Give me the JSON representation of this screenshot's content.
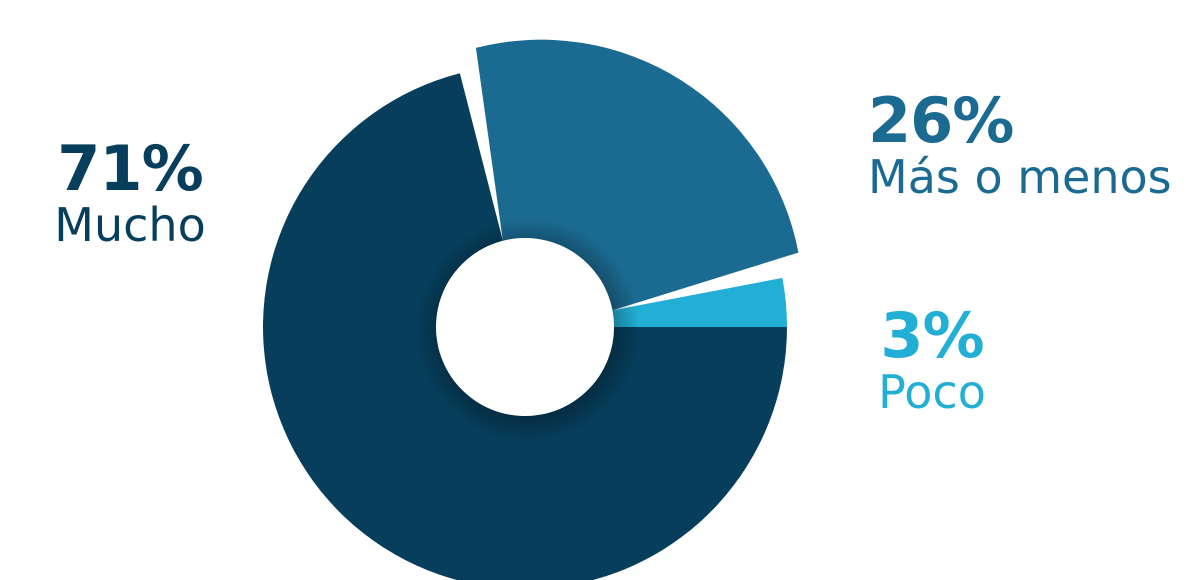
{
  "chart_data": {
    "type": "pie",
    "style": "donut",
    "categories": [
      "Mucho",
      "Más o menos",
      "Poco"
    ],
    "values": [
      71,
      26,
      3
    ],
    "value_labels": [
      "71%",
      "26%",
      "3%"
    ],
    "colors": [
      "#063e5b",
      "#1b6a91",
      "#22afd6"
    ],
    "exploded": [
      "Más o menos"
    ],
    "title": "",
    "legend": "none"
  }
}
